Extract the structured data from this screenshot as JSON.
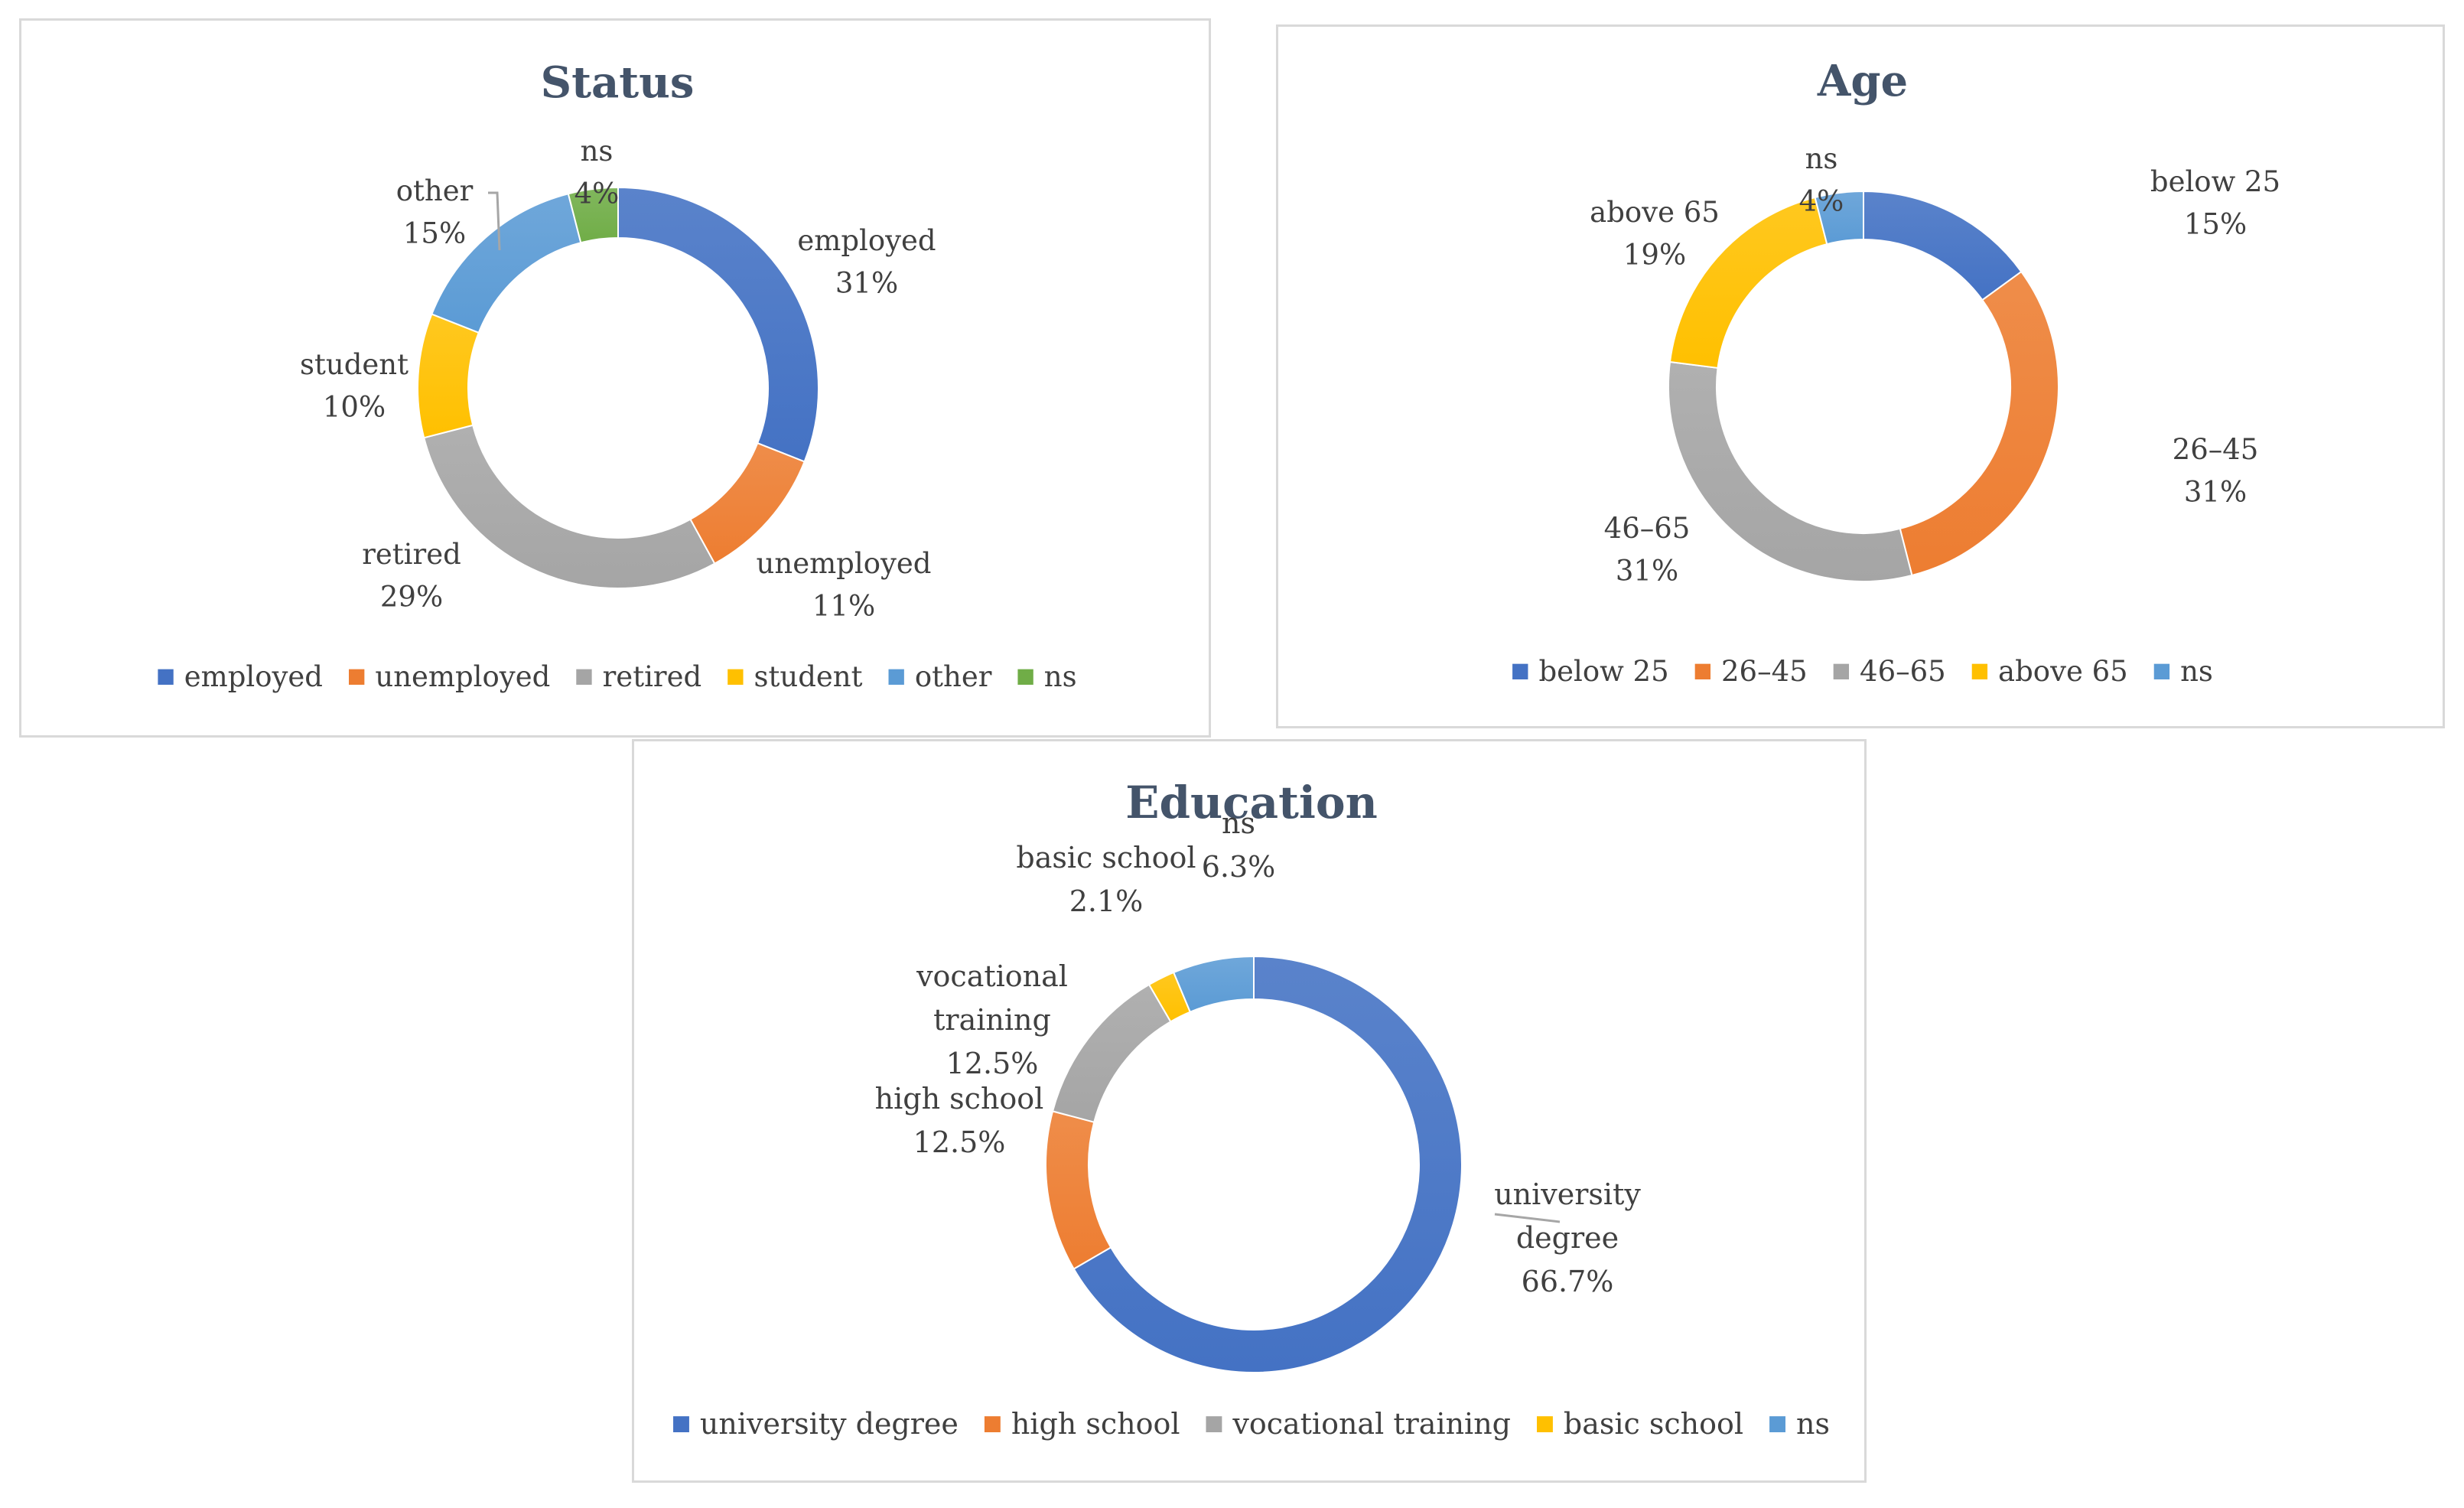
{
  "chart_data": [
    {
      "type": "pie",
      "variant": "donut",
      "title": "Status",
      "categories": [
        "employed",
        "unemployed",
        "retired",
        "student",
        "other",
        "ns"
      ],
      "values": [
        31,
        11,
        29,
        10,
        15,
        4
      ],
      "value_labels": [
        "31%",
        "11%",
        "29%",
        "10%",
        "15%",
        "4%"
      ],
      "colors": [
        "#4472c4",
        "#ed7d31",
        "#a5a5a5",
        "#ffc000",
        "#5b9bd5",
        "#70ad47"
      ],
      "legend_position": "bottom"
    },
    {
      "type": "pie",
      "variant": "donut",
      "title": "Age",
      "categories": [
        "below 25",
        "26–45",
        "46–65",
        "above 65",
        "ns"
      ],
      "values": [
        15,
        31,
        31,
        19,
        4
      ],
      "value_labels": [
        "15%",
        "31%",
        "31%",
        "19%",
        "4%"
      ],
      "colors": [
        "#4472c4",
        "#ed7d31",
        "#a5a5a5",
        "#ffc000",
        "#5b9bd5"
      ],
      "legend_position": "bottom"
    },
    {
      "type": "pie",
      "variant": "donut",
      "title": "Education",
      "categories": [
        "university degree",
        "high school",
        "vocational training",
        "basic school",
        "ns"
      ],
      "values": [
        66.7,
        12.5,
        12.5,
        2.1,
        6.3
      ],
      "value_labels": [
        "66.7%",
        "12.5%",
        "12.5%",
        "2.1%",
        "6.3%"
      ],
      "colors": [
        "#4472c4",
        "#ed7d31",
        "#a5a5a5",
        "#ffc000",
        "#5b9bd5"
      ],
      "legend_position": "bottom"
    }
  ]
}
